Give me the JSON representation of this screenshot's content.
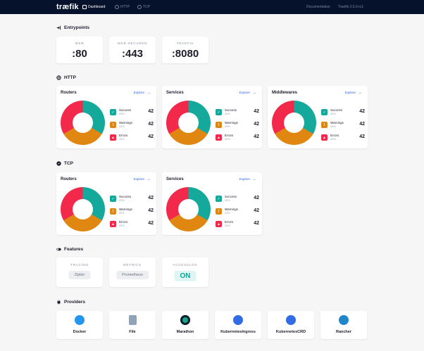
{
  "nav": {
    "logo": "træfik",
    "items": [
      {
        "label": "Dashboard",
        "icon": "home-icon"
      },
      {
        "label": "HTTP",
        "icon": "globe-icon"
      },
      {
        "label": "TCP",
        "icon": "compass-icon"
      }
    ],
    "documentation": "Documentation",
    "version": "Traefik 2.0.0-rc1"
  },
  "entrypoints": {
    "title": "Entrypoints",
    "items": [
      {
        "name": "WEB",
        "port": ":80"
      },
      {
        "name": "WEB-SECURED",
        "port": ":443"
      },
      {
        "name": "TRAEFIK",
        "port": ":8080"
      }
    ]
  },
  "http": {
    "title": "HTTP",
    "cards": [
      {
        "title": "Routers",
        "explore": "Explore",
        "stats": [
          {
            "label": "Success",
            "pct": "33%",
            "value": "42"
          },
          {
            "label": "Warnings",
            "pct": "33%",
            "value": "42"
          },
          {
            "label": "Errors",
            "pct": "33%",
            "value": "42"
          }
        ]
      },
      {
        "title": "Services",
        "explore": "Explore",
        "stats": [
          {
            "label": "Success",
            "pct": "33%",
            "value": "42"
          },
          {
            "label": "Warnings",
            "pct": "33%",
            "value": "42"
          },
          {
            "label": "Errors",
            "pct": "33%",
            "value": "42"
          }
        ]
      },
      {
        "title": "Middlewares",
        "explore": "Explore",
        "stats": [
          {
            "label": "Success",
            "pct": "33%",
            "value": "42"
          },
          {
            "label": "Warnings",
            "pct": "33%",
            "value": "42"
          },
          {
            "label": "Errors",
            "pct": "33%",
            "value": "42"
          }
        ]
      }
    ]
  },
  "tcp": {
    "title": "TCP",
    "cards": [
      {
        "title": "Routers",
        "explore": "Explore",
        "stats": [
          {
            "label": "Success",
            "pct": "33%",
            "value": "42"
          },
          {
            "label": "Warnings",
            "pct": "33%",
            "value": "42"
          },
          {
            "label": "Errors",
            "pct": "33%",
            "value": "42"
          }
        ]
      },
      {
        "title": "Services",
        "explore": "Explore",
        "stats": [
          {
            "label": "Success",
            "pct": "33%",
            "value": "42"
          },
          {
            "label": "Warnings",
            "pct": "33%",
            "value": "42"
          },
          {
            "label": "Errors",
            "pct": "33%",
            "value": "42"
          }
        ]
      }
    ]
  },
  "features": {
    "title": "Features",
    "items": [
      {
        "name": "TRACING",
        "value": "Zipkin"
      },
      {
        "name": "METRICS",
        "value": "Prometheus"
      },
      {
        "name": "ACCESSLOG",
        "value": "ON"
      }
    ]
  },
  "providers": {
    "title": "Providers",
    "items": [
      {
        "name": "Docker",
        "icon": "docker-icon"
      },
      {
        "name": "File",
        "icon": "file-icon"
      },
      {
        "name": "Marathon",
        "icon": "marathon-icon"
      },
      {
        "name": "KubernetesIngress",
        "icon": "kubernetes-icon"
      },
      {
        "name": "KubernetesCRD",
        "icon": "kubernetes-icon"
      },
      {
        "name": "Rancher",
        "icon": "rancher-icon"
      }
    ]
  },
  "colors": {
    "success": "#14a99a",
    "warning": "#e08712",
    "error": "#f2294b",
    "nav_bg": "#06112b",
    "link": "#2a64e8"
  }
}
